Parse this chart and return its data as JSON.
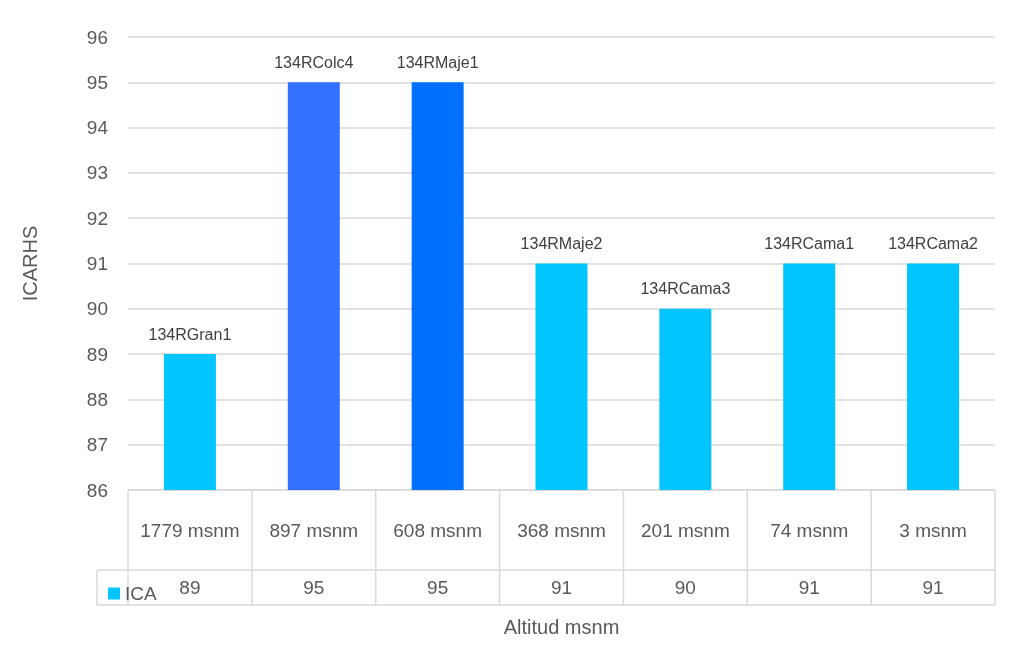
{
  "chart_data": {
    "type": "bar",
    "xlabel": "Altitud msnm",
    "ylabel": "ICARHS",
    "categories": [
      "1779 msnm",
      "897 msnm",
      "608 msnm",
      "368 msnm",
      "201 msnm",
      "74 msnm",
      "3 msnm"
    ],
    "series": [
      {
        "name": "ICA",
        "values": [
          89,
          95,
          95,
          91,
          90,
          91,
          91
        ]
      }
    ],
    "colors": [
      "#00c5ff",
      "#3370ff",
      "#0070ff",
      "#00c5ff",
      "#00c5ff",
      "#00c5ff",
      "#00c5ff"
    ],
    "ylim": [
      86,
      96
    ],
    "yticks": [
      86,
      87,
      88,
      89,
      90,
      91,
      92,
      93,
      94,
      95,
      96
    ],
    "grid": "y",
    "legend": "bottom left",
    "data_labels": true,
    "annotations": [
      {
        "text": "134RGran1",
        "x": "1779 msnm",
        "y": 89
      },
      {
        "text": "134RColc4",
        "x": "897 msnm",
        "y": 95
      },
      {
        "text": "134RMaje1",
        "x": "608 msnm",
        "y": 95
      },
      {
        "text": "134RMaje2",
        "x": "368 msnm",
        "y": 91
      },
      {
        "text": "134RCama3",
        "x": "201 msnm",
        "y": 90
      },
      {
        "text": "134RCama1",
        "x": "74 msnm",
        "y": 91
      },
      {
        "text": "134RCama2",
        "x": "3 msnm",
        "y": 91
      }
    ]
  }
}
